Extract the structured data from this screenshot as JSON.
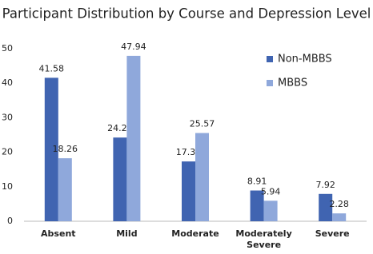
{
  "chart_data": {
    "type": "bar",
    "title": "Participant Distribution by Course and Depression Level",
    "categories": [
      "Absent",
      "Mild",
      "Moderate",
      "Moderately Severe",
      "Severe"
    ],
    "series": [
      {
        "name": "Non-MBBS",
        "color": "#4064b1",
        "values": [
          41.58,
          24.26,
          17.33,
          8.91,
          7.92
        ]
      },
      {
        "name": "MBBS",
        "color": "#8fa8db",
        "values": [
          18.26,
          47.94,
          25.57,
          5.94,
          2.28
        ]
      }
    ],
    "ylim": [
      0,
      50
    ],
    "yticks": [
      0,
      10,
      20,
      30,
      40,
      50
    ],
    "grid": false,
    "legend": "top-right"
  }
}
